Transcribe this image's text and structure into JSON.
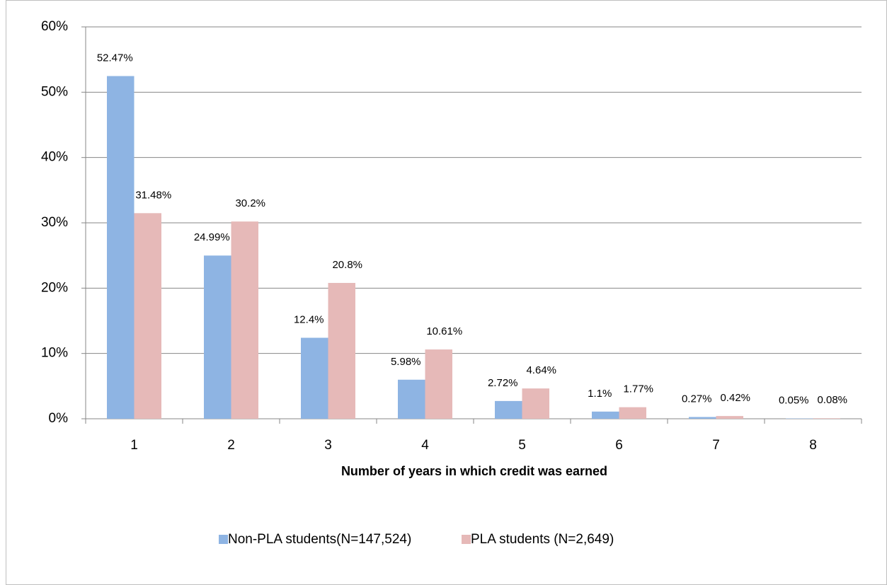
{
  "chart_data": {
    "type": "bar",
    "x_label": "Number of years in which credit was earned",
    "categories": [
      "1",
      "2",
      "3",
      "4",
      "5",
      "6",
      "7",
      "8"
    ],
    "series": [
      {
        "name": "Non-PLA students(N=147,524)",
        "color": "#8eb4e3",
        "values": [
          52.47,
          24.99,
          12.4,
          5.98,
          2.72,
          1.1,
          0.27,
          0.05
        ],
        "value_labels": [
          "52.47%",
          "24.99%",
          "12.4%",
          "5.98%",
          "2.72%",
          "1.1%",
          "0.27%",
          "0.05%"
        ]
      },
      {
        "name": "PLA students (N=2,649)",
        "color": "#e6b9b8",
        "values": [
          31.48,
          30.2,
          20.8,
          10.61,
          4.64,
          1.77,
          0.42,
          0.08
        ],
        "value_labels": [
          "31.48%",
          "30.2%",
          "20.8%",
          "10.61%",
          "4.64%",
          "1.77%",
          "0.42%",
          "0.08%"
        ]
      }
    ],
    "ylim": [
      0,
      60
    ],
    "yticks": [
      {
        "value": 0,
        "label": "0%"
      },
      {
        "value": 10,
        "label": "10%"
      },
      {
        "value": 20,
        "label": "20%"
      },
      {
        "value": 30,
        "label": "30%"
      },
      {
        "value": 40,
        "label": "40%"
      },
      {
        "value": 50,
        "label": "50%"
      },
      {
        "value": 60,
        "label": "60%"
      }
    ],
    "grid": true,
    "legend": "bottom"
  }
}
